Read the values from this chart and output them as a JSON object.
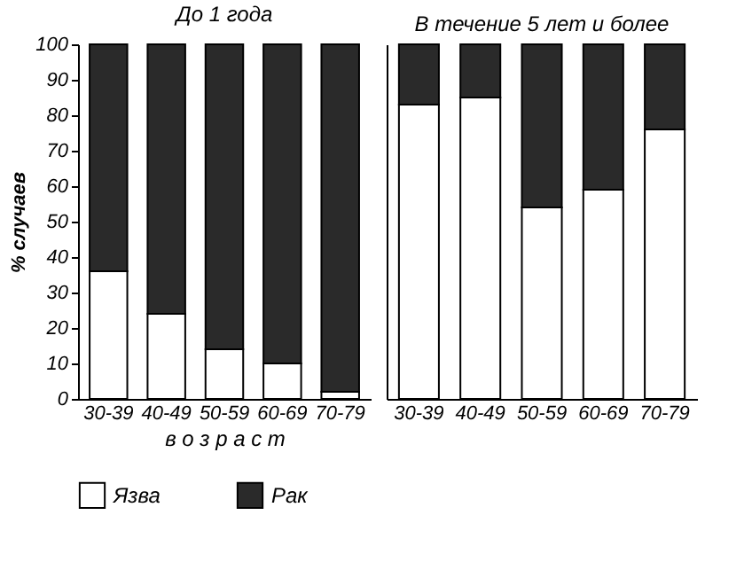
{
  "chart_data": [
    {
      "type": "bar",
      "title": "До 1 года",
      "ylabel": "% случаев",
      "xlabel": "в о з р а с т",
      "categories": [
        "30-39",
        "40-49",
        "50-59",
        "60-69",
        "70-79"
      ],
      "stacked": true,
      "legend": "bottom",
      "grid": false,
      "ylim": [
        0,
        100
      ],
      "yticks": [
        0,
        10,
        20,
        30,
        40,
        50,
        60,
        70,
        80,
        90,
        100
      ],
      "series": [
        {
          "name": "Язва",
          "color": "#ffffff",
          "values": [
            36,
            24,
            14,
            10,
            2
          ]
        },
        {
          "name": "Рак",
          "color": "#2a2a2a",
          "values": [
            64,
            76,
            86,
            90,
            98
          ]
        }
      ]
    },
    {
      "type": "bar",
      "title": "В течение 5 лет и более",
      "categories": [
        "30-39",
        "40-49",
        "50-59",
        "60-69",
        "70-79"
      ],
      "stacked": true,
      "grid": false,
      "tick_labels": "x",
      "ylim": [
        0,
        100
      ],
      "yticks": [
        0,
        10,
        20,
        30,
        40,
        50,
        60,
        70,
        80,
        90,
        100
      ],
      "series": [
        {
          "name": "Язва",
          "color": "#ffffff",
          "values": [
            83,
            85,
            54,
            59,
            76
          ]
        },
        {
          "name": "Рак",
          "color": "#2a2a2a",
          "values": [
            17,
            15,
            46,
            41,
            24
          ]
        }
      ]
    }
  ]
}
